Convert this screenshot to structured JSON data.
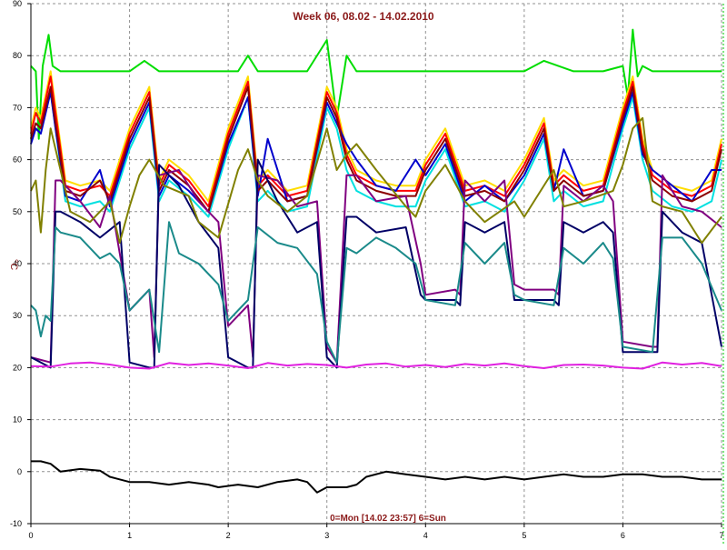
{
  "chart_data": {
    "type": "line",
    "title": "Week 06, 08.02 - 14.02.2010",
    "xlabel": "0=Mon [14.02 23:57] 6=Sun",
    "ylabel": "°C",
    "xlim": [
      0,
      7
    ],
    "ylim": [
      -10,
      90
    ],
    "x_ticks": [
      "0",
      "1",
      "2",
      "3",
      "4",
      "5",
      "6",
      "7"
    ],
    "y_ticks": [
      "-10",
      "0",
      "10",
      "20",
      "30",
      "40",
      "50",
      "60",
      "70",
      "80",
      "90"
    ],
    "grid": true,
    "series": [
      {
        "color": "#00dd00",
        "x": [
          0,
          0.05,
          0.08,
          0.12,
          0.18,
          0.22,
          0.3,
          0.5,
          0.8,
          1.0,
          1.15,
          1.3,
          1.6,
          1.9,
          2.1,
          2.2,
          2.3,
          2.5,
          2.8,
          3.0,
          3.1,
          3.2,
          3.3,
          3.5,
          3.8,
          4.0,
          4.2,
          4.5,
          4.8,
          5.0,
          5.2,
          5.5,
          5.8,
          6.0,
          6.05,
          6.1,
          6.15,
          6.2,
          6.3,
          6.5,
          6.8,
          7.0
        ],
        "y": [
          78,
          77,
          64,
          78,
          84,
          78,
          77,
          77,
          77,
          77,
          79,
          77,
          77,
          77,
          77,
          80,
          77,
          77,
          77,
          83,
          68,
          80,
          77,
          77,
          77,
          77,
          77,
          77,
          77,
          77,
          79,
          77,
          77,
          78,
          72,
          85,
          76,
          78,
          77,
          77,
          77,
          77
        ]
      },
      {
        "color": "#ffdd00",
        "x": [
          0,
          0.05,
          0.1,
          0.2,
          0.25,
          0.35,
          0.5,
          0.7,
          0.8,
          1.0,
          1.2,
          1.3,
          1.4,
          1.6,
          1.8,
          2.0,
          2.2,
          2.3,
          2.4,
          2.6,
          2.8,
          3.0,
          3.1,
          3.2,
          3.3,
          3.5,
          3.7,
          3.9,
          4.0,
          4.2,
          4.4,
          4.6,
          4.8,
          5.0,
          5.2,
          5.3,
          5.4,
          5.6,
          5.8,
          6.0,
          6.1,
          6.2,
          6.3,
          6.5,
          6.7,
          6.9,
          7.0
        ],
        "y": [
          66,
          70,
          68,
          77,
          70,
          56,
          55,
          56,
          54,
          66,
          74,
          56,
          60,
          57,
          52,
          66,
          76,
          56,
          58,
          54,
          55,
          74,
          70,
          62,
          58,
          56,
          55,
          55,
          60,
          66,
          55,
          56,
          54,
          60,
          68,
          56,
          58,
          55,
          56,
          70,
          76,
          64,
          58,
          55,
          54,
          56,
          64
        ]
      },
      {
        "color": "#ff0000",
        "x": [
          0,
          0.05,
          0.1,
          0.2,
          0.25,
          0.35,
          0.5,
          0.7,
          0.8,
          1.0,
          1.2,
          1.3,
          1.4,
          1.6,
          1.8,
          2.0,
          2.2,
          2.3,
          2.4,
          2.6,
          2.8,
          3.0,
          3.1,
          3.2,
          3.3,
          3.5,
          3.7,
          3.9,
          4.0,
          4.2,
          4.4,
          4.6,
          4.8,
          5.0,
          5.2,
          5.3,
          5.4,
          5.6,
          5.8,
          6.0,
          6.1,
          6.2,
          6.3,
          6.5,
          6.7,
          6.9,
          7.0
        ],
        "y": [
          65,
          69,
          67,
          76,
          69,
          55,
          54,
          55,
          53,
          65,
          73,
          55,
          59,
          56,
          51,
          65,
          75,
          55,
          57,
          53,
          54,
          73,
          69,
          61,
          57,
          55,
          54,
          54,
          59,
          65,
          54,
          55,
          53,
          59,
          67,
          55,
          57,
          54,
          55,
          69,
          75,
          63,
          57,
          54,
          53,
          55,
          63
        ]
      },
      {
        "color": "#00e0e0",
        "x": [
          0,
          0.05,
          0.1,
          0.2,
          0.25,
          0.35,
          0.5,
          0.7,
          0.8,
          1.0,
          1.2,
          1.3,
          1.4,
          1.6,
          1.8,
          2.0,
          2.2,
          2.3,
          2.4,
          2.6,
          2.8,
          3.0,
          3.1,
          3.2,
          3.3,
          3.5,
          3.7,
          3.9,
          4.0,
          4.2,
          4.4,
          4.6,
          4.8,
          5.0,
          5.2,
          5.3,
          5.4,
          5.6,
          5.8,
          6.0,
          6.1,
          6.2,
          6.3,
          6.5,
          6.7,
          6.9,
          7.0
        ],
        "y": [
          64,
          67,
          66,
          73,
          66,
          52,
          51,
          52,
          50,
          62,
          70,
          52,
          56,
          53,
          49,
          62,
          72,
          52,
          54,
          50,
          51,
          70,
          66,
          58,
          54,
          52,
          51,
          51,
          56,
          62,
          51,
          52,
          50,
          56,
          64,
          52,
          54,
          51,
          52,
          66,
          72,
          60,
          54,
          51,
          50,
          52,
          60
        ]
      },
      {
        "color": "#0000cc",
        "x": [
          0,
          0.05,
          0.1,
          0.2,
          0.25,
          0.35,
          0.5,
          0.7,
          0.8,
          1.0,
          1.2,
          1.3,
          1.4,
          1.6,
          1.8,
          2.0,
          2.2,
          2.3,
          2.4,
          2.6,
          2.8,
          3.0,
          3.1,
          3.2,
          3.3,
          3.5,
          3.7,
          3.9,
          4.0,
          4.2,
          4.4,
          4.6,
          4.8,
          5.0,
          5.2,
          5.3,
          5.4,
          5.6,
          5.8,
          6.0,
          6.1,
          6.2,
          6.3,
          6.5,
          6.7,
          6.9,
          7.0
        ],
        "y": [
          63,
          66,
          65,
          73,
          66,
          53,
          52,
          58,
          51,
          63,
          71,
          53,
          57,
          54,
          50,
          63,
          72,
          53,
          64,
          52,
          53,
          71,
          67,
          63,
          60,
          55,
          54,
          60,
          57,
          63,
          52,
          55,
          52,
          57,
          65,
          54,
          62,
          53,
          54,
          67,
          73,
          61,
          58,
          55,
          52,
          58,
          58
        ]
      },
      {
        "color": "#8b0000",
        "x": [
          0,
          0.05,
          0.1,
          0.2,
          0.25,
          0.35,
          0.5,
          0.7,
          0.8,
          1.0,
          1.2,
          1.3,
          1.4,
          1.6,
          1.8,
          2.0,
          2.2,
          2.3,
          2.4,
          2.6,
          2.8,
          3.0,
          3.1,
          3.2,
          3.3,
          3.5,
          3.7,
          3.9,
          4.0,
          4.2,
          4.4,
          4.6,
          4.8,
          5.0,
          5.2,
          5.3,
          5.4,
          5.6,
          5.8,
          6.0,
          6.1,
          6.2,
          6.3,
          6.5,
          6.7,
          6.9,
          7.0
        ],
        "y": [
          64,
          67,
          66,
          74,
          67,
          54,
          53,
          56,
          52,
          64,
          72,
          54,
          58,
          55,
          50,
          64,
          74,
          54,
          56,
          52,
          53,
          72,
          68,
          60,
          56,
          54,
          53,
          53,
          58,
          64,
          53,
          54,
          52,
          58,
          66,
          54,
          56,
          53,
          54,
          68,
          74,
          62,
          56,
          53,
          52,
          54,
          62
        ]
      },
      {
        "color": "#800080",
        "x": [
          0,
          0.2,
          0.25,
          0.3,
          0.5,
          0.7,
          0.8,
          1.0,
          1.2,
          1.25,
          1.3,
          1.5,
          1.7,
          1.9,
          2.0,
          2.2,
          2.25,
          2.3,
          2.5,
          2.7,
          2.9,
          3.0,
          3.1,
          3.2,
          3.3,
          3.5,
          3.8,
          3.95,
          4.0,
          4.3,
          4.35,
          4.4,
          4.6,
          4.8,
          4.9,
          5.0,
          5.3,
          5.35,
          5.4,
          5.6,
          5.8,
          5.9,
          6.0,
          6.3,
          6.35,
          6.4,
          6.6,
          6.8,
          7.0
        ],
        "y": [
          22,
          21,
          56,
          56,
          52,
          47,
          53,
          31,
          35,
          22,
          57,
          58,
          52,
          48,
          28,
          32,
          22,
          57,
          56,
          51,
          52,
          24,
          21,
          57,
          57,
          52,
          53,
          40,
          34,
          35,
          34,
          56,
          52,
          56,
          36,
          35,
          35,
          34,
          55,
          52,
          55,
          52,
          25,
          24,
          24,
          57,
          51,
          50,
          47
        ]
      },
      {
        "color": "#000066",
        "x": [
          0,
          0.2,
          0.25,
          0.3,
          0.5,
          0.7,
          0.9,
          1.0,
          1.2,
          1.25,
          1.3,
          1.5,
          1.7,
          1.9,
          2.0,
          2.2,
          2.25,
          2.3,
          2.5,
          2.7,
          2.9,
          3.0,
          3.1,
          3.2,
          3.3,
          3.5,
          3.8,
          3.95,
          4.0,
          4.3,
          4.35,
          4.4,
          4.6,
          4.8,
          4.9,
          5.0,
          5.3,
          5.35,
          5.4,
          5.6,
          5.8,
          5.9,
          6.0,
          6.3,
          6.35,
          6.4,
          6.6,
          6.8,
          7.0
        ],
        "y": [
          22,
          20,
          50,
          50,
          48,
          45,
          48,
          21,
          20,
          20,
          59,
          55,
          48,
          43,
          22,
          20,
          20,
          60,
          52,
          46,
          48,
          22,
          20,
          49,
          49,
          46,
          47,
          34,
          33,
          33,
          32,
          48,
          46,
          48,
          33,
          33,
          33,
          32,
          48,
          46,
          48,
          46,
          23,
          23,
          23,
          50,
          46,
          44,
          24
        ]
      },
      {
        "color": "#1a8a8a",
        "x": [
          0,
          0.05,
          0.1,
          0.15,
          0.2,
          0.25,
          0.3,
          0.5,
          0.7,
          0.8,
          0.9,
          1.0,
          1.2,
          1.3,
          1.4,
          1.5,
          1.7,
          1.9,
          2.0,
          2.2,
          2.3,
          2.5,
          2.7,
          2.9,
          3.0,
          3.1,
          3.2,
          3.3,
          3.5,
          3.7,
          3.9,
          4.0,
          4.3,
          4.4,
          4.6,
          4.8,
          4.9,
          5.0,
          5.3,
          5.4,
          5.6,
          5.8,
          5.9,
          6.0,
          6.3,
          6.4,
          6.6,
          6.8,
          7.0
        ],
        "y": [
          32,
          31,
          26,
          30,
          29,
          47,
          46,
          45,
          41,
          42,
          40,
          31,
          35,
          23,
          48,
          42,
          40,
          36,
          29,
          33,
          47,
          44,
          43,
          38,
          25,
          21,
          43,
          42,
          45,
          43,
          40,
          33,
          32,
          44,
          40,
          44,
          34,
          33,
          32,
          43,
          40,
          44,
          41,
          24,
          23,
          45,
          45,
          40,
          31
        ]
      },
      {
        "color": "#808000",
        "x": [
          0,
          0.05,
          0.1,
          0.15,
          0.2,
          0.3,
          0.4,
          0.6,
          0.8,
          0.9,
          1.0,
          1.1,
          1.2,
          1.35,
          1.6,
          1.7,
          1.9,
          2.1,
          2.2,
          2.3,
          2.4,
          2.6,
          2.8,
          3.0,
          3.1,
          3.2,
          3.3,
          3.5,
          3.8,
          3.9,
          4.0,
          4.2,
          4.4,
          4.6,
          4.9,
          5.0,
          5.3,
          5.4,
          5.6,
          5.9,
          6.0,
          6.1,
          6.2,
          6.3,
          6.4,
          6.6,
          6.8,
          7.0
        ],
        "y": [
          54,
          56,
          46,
          58,
          66,
          58,
          50,
          48,
          52,
          44,
          51,
          57,
          60,
          55,
          53,
          48,
          45,
          58,
          62,
          56,
          53,
          50,
          53,
          66,
          58,
          61,
          63,
          58,
          51,
          49,
          54,
          59,
          52,
          48,
          52,
          49,
          58,
          51,
          52,
          54,
          59,
          66,
          68,
          52,
          51,
          50,
          44,
          49
        ]
      },
      {
        "color": "#e020e0",
        "x": [
          0,
          0.2,
          0.4,
          0.6,
          0.8,
          1.0,
          1.2,
          1.4,
          1.6,
          1.8,
          2.0,
          2.2,
          2.4,
          2.6,
          2.8,
          3.0,
          3.2,
          3.4,
          3.6,
          3.8,
          4.0,
          4.2,
          4.4,
          4.6,
          4.8,
          5.0,
          5.2,
          5.4,
          5.6,
          5.8,
          6.0,
          6.2,
          6.4,
          6.6,
          6.8,
          7.0
        ],
        "y": [
          20.3,
          20.2,
          20.8,
          21.0,
          20.6,
          20.0,
          19.8,
          20.9,
          20.5,
          20.8,
          20.4,
          19.9,
          20.9,
          20.4,
          20.7,
          20.5,
          20.0,
          20.6,
          20.8,
          20.2,
          20.5,
          20.1,
          20.7,
          20.4,
          20.8,
          20.3,
          19.9,
          20.5,
          20.6,
          20.4,
          20.0,
          19.8,
          21.0,
          20.6,
          20.9,
          20.3
        ]
      },
      {
        "color": "#000000",
        "x": [
          0,
          0.1,
          0.2,
          0.3,
          0.5,
          0.7,
          0.8,
          1.0,
          1.2,
          1.4,
          1.6,
          1.8,
          1.9,
          2.1,
          2.3,
          2.5,
          2.7,
          2.8,
          2.9,
          3.0,
          3.2,
          3.3,
          3.4,
          3.6,
          3.8,
          4.0,
          4.2,
          4.4,
          4.6,
          4.8,
          5.0,
          5.2,
          5.4,
          5.6,
          5.8,
          6.0,
          6.2,
          6.4,
          6.6,
          6.8,
          7.0
        ],
        "y": [
          2,
          2,
          1.5,
          0,
          0.5,
          0.2,
          -1,
          -2,
          -2,
          -2.5,
          -2,
          -2.5,
          -3,
          -2.5,
          -3,
          -2,
          -1.5,
          -2,
          -4,
          -3,
          -3,
          -2.5,
          -1,
          0,
          -0.5,
          -1,
          -1.5,
          -1,
          -1.5,
          -1,
          -1.5,
          -1,
          -0.5,
          -1,
          -1,
          -0.5,
          -0.5,
          -1,
          -1,
          -1.5,
          -1.5
        ]
      }
    ]
  }
}
